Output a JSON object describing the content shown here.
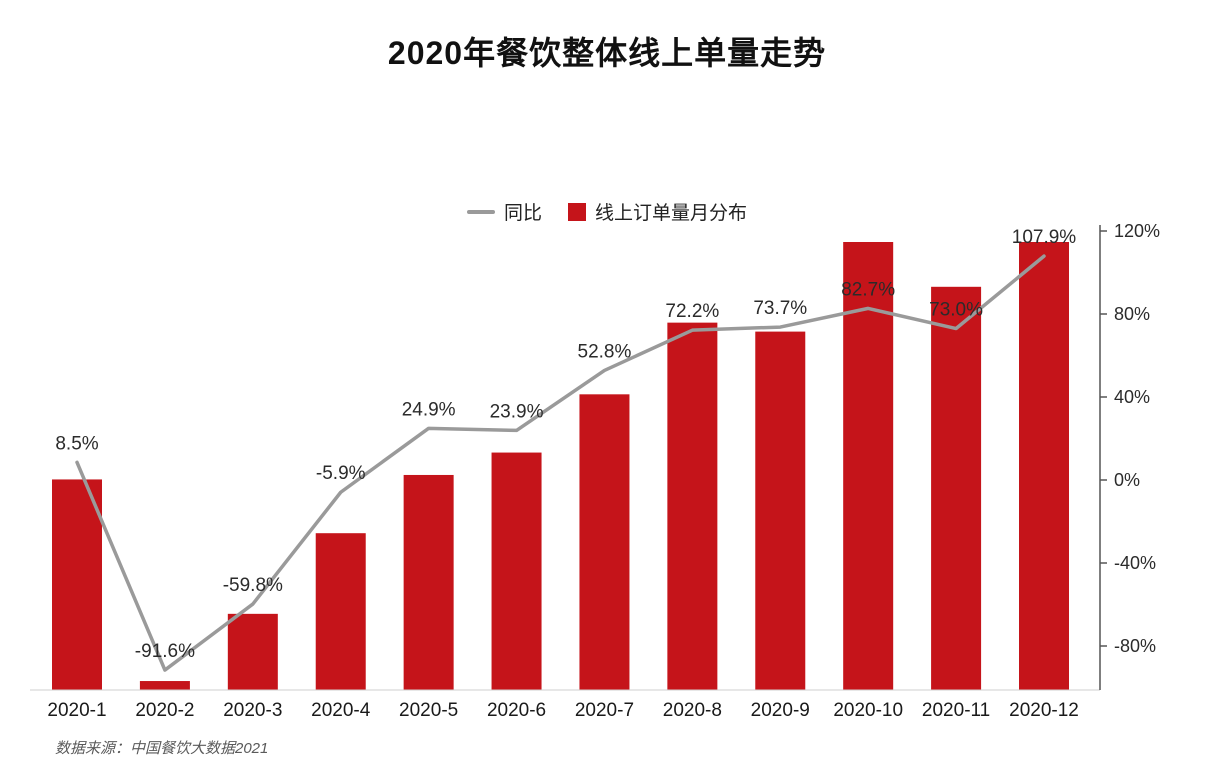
{
  "title": "2020年餐饮整体线上单量走势",
  "legend": {
    "line_label": "同比",
    "bar_label": "线上订单量月分布"
  },
  "source_note": "数据来源：中国餐饮大数据2021",
  "colors": {
    "bar_red": "#c5141a",
    "line_gray": "#9a9a9a",
    "axis": "#555555",
    "label_text": "#2b2b2b",
    "x_label_text": "#1a1a1a"
  },
  "chart_data": {
    "type": "bar+line",
    "title": "2020年餐饮整体线上单量走势",
    "categories": [
      "2020-1",
      "2020-2",
      "2020-3",
      "2020-4",
      "2020-5",
      "2020-6",
      "2020-7",
      "2020-8",
      "2020-9",
      "2020-10",
      "2020-11",
      "2020-12"
    ],
    "series": [
      {
        "name": "线上订单量月分布",
        "type": "bar",
        "note": "order-volume monthly distribution; left axis not labeled, values are relative heights (max month = 100)",
        "values_relative": [
          47,
          2,
          17,
          35,
          48,
          53,
          66,
          82,
          80,
          100,
          90,
          100
        ]
      },
      {
        "name": "同比",
        "type": "line",
        "unit": "%",
        "axis": "right",
        "values": [
          8.5,
          -91.6,
          -59.8,
          -5.9,
          24.9,
          23.9,
          52.8,
          72.2,
          73.7,
          82.7,
          73.0,
          107.9
        ]
      }
    ],
    "data_labels": [
      "8.5%",
      "-91.6%",
      "-59.8%",
      "-5.9%",
      "24.9%",
      "23.9%",
      "52.8%",
      "72.2%",
      "73.7%",
      "82.7%",
      "73.0%",
      "107.9%"
    ],
    "right_axis": {
      "ticks": [
        "120%",
        "80%",
        "40%",
        "0%",
        "-40%",
        "-80%"
      ],
      "values": [
        120,
        80,
        40,
        0,
        -40,
        -80
      ],
      "range_shown": [
        -101,
        123
      ]
    },
    "legend_position": "top-center",
    "grid": false
  }
}
